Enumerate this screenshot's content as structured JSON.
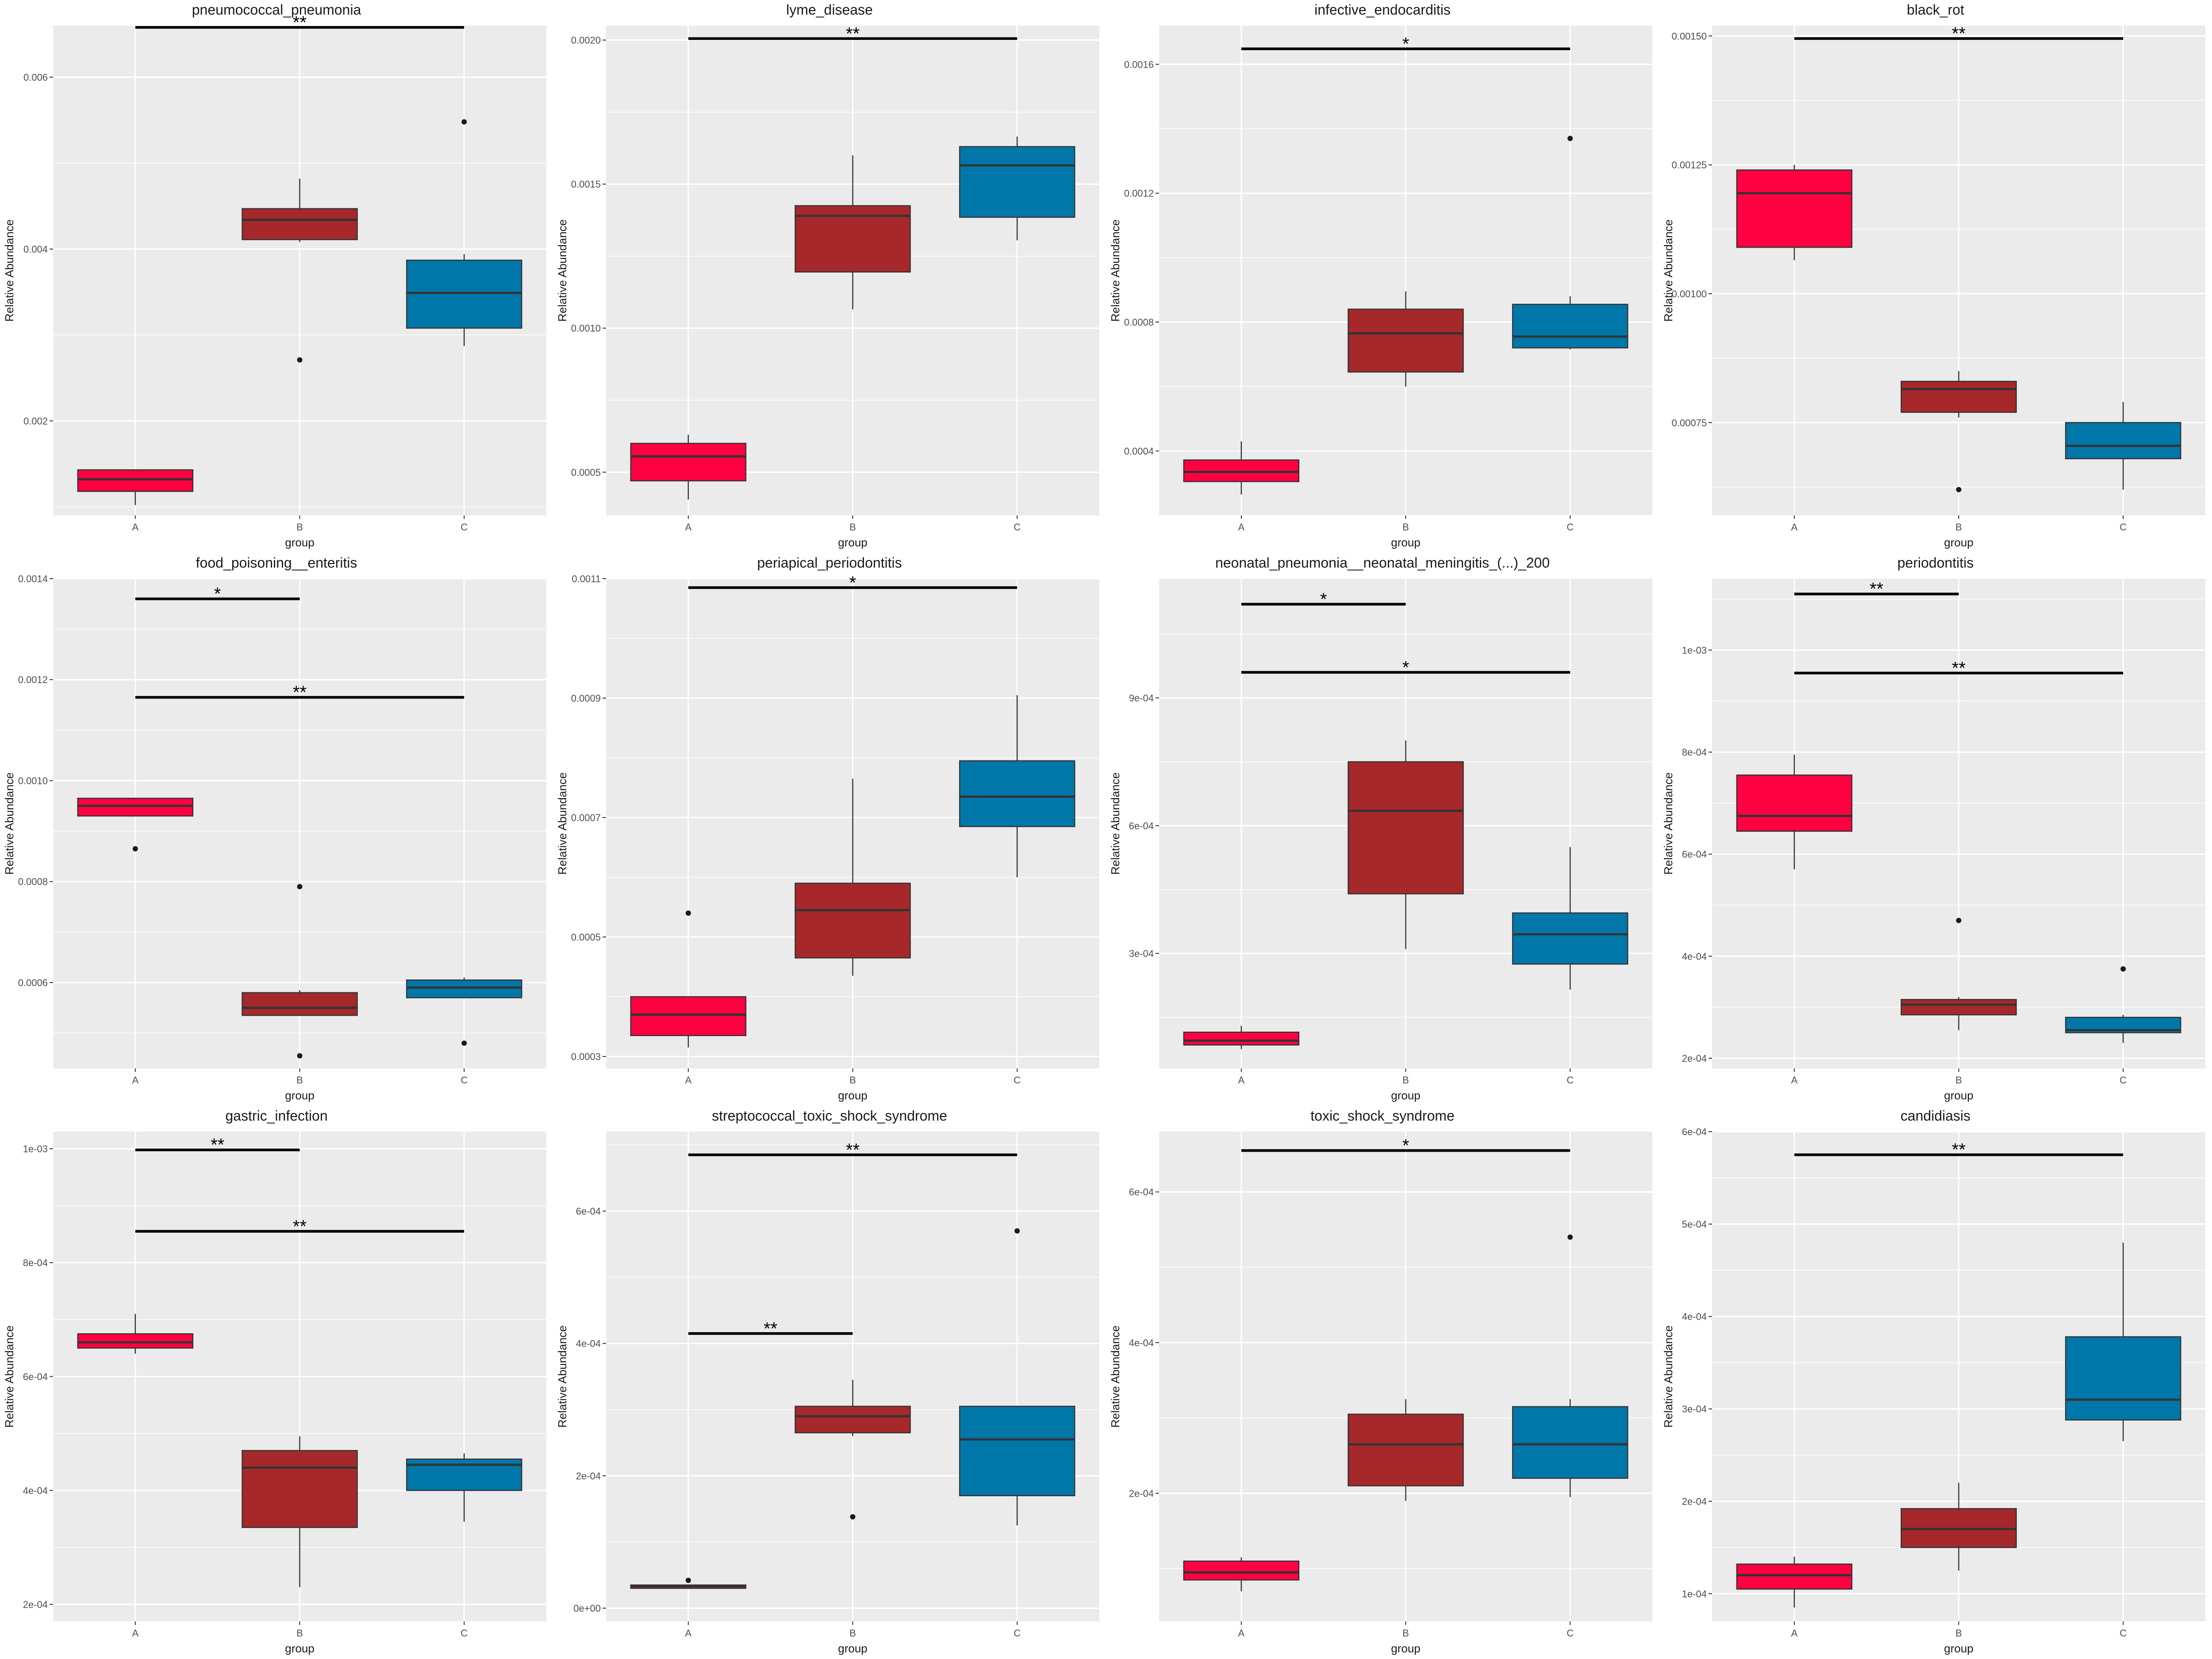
{
  "colors": {
    "A": "#FF0040",
    "B": "#A6282B",
    "C": "#0077A8",
    "panel_bg": "#EBEBEB",
    "grid": "#FFFFFF"
  },
  "chart_data": [
    {
      "type": "box",
      "title": "pneumococcal_pneumonia",
      "xlabel": "group",
      "ylabel": "Relative Abundance",
      "categories": [
        "A",
        "B",
        "C"
      ],
      "yticks": [
        0.002,
        0.004,
        0.006
      ],
      "ytick_labels": [
        "0.002",
        "0.004",
        "0.006"
      ],
      "ylim": [
        0.0009,
        0.0066
      ],
      "boxes": [
        {
          "group": "A",
          "min": 0.00102,
          "q1": 0.00118,
          "median": 0.00132,
          "q3": 0.00143,
          "max": 0.00143,
          "outliers": []
        },
        {
          "group": "B",
          "min": 0.00408,
          "q1": 0.00411,
          "median": 0.00434,
          "q3": 0.00447,
          "max": 0.00482,
          "outliers": [
            0.00271
          ]
        },
        {
          "group": "C",
          "min": 0.00287,
          "q1": 0.00308,
          "median": 0.00349,
          "q3": 0.00387,
          "max": 0.00394,
          "outliers": [
            0.00548
          ]
        }
      ],
      "significance": [
        {
          "from": "A",
          "to": "C",
          "y": 0.00658,
          "label": "**"
        }
      ]
    },
    {
      "type": "box",
      "title": "lyme_disease",
      "xlabel": "group",
      "ylabel": "Relative Abundance",
      "categories": [
        "A",
        "B",
        "C"
      ],
      "yticks": [
        0.0005,
        0.001,
        0.0015,
        0.002
      ],
      "ytick_labels": [
        "0.0005",
        "0.0010",
        "0.0015",
        "0.0020"
      ],
      "ylim": [
        0.00035,
        0.00205
      ],
      "boxes": [
        {
          "group": "A",
          "min": 0.000405,
          "q1": 0.00047,
          "median": 0.000555,
          "q3": 0.0006,
          "max": 0.00063,
          "outliers": []
        },
        {
          "group": "B",
          "min": 0.001065,
          "q1": 0.001195,
          "median": 0.00139,
          "q3": 0.001425,
          "max": 0.0016,
          "outliers": []
        },
        {
          "group": "C",
          "min": 0.001305,
          "q1": 0.001385,
          "median": 0.001565,
          "q3": 0.00163,
          "max": 0.001665,
          "outliers": []
        }
      ],
      "significance": [
        {
          "from": "A",
          "to": "C",
          "y": 0.002005,
          "label": "**"
        }
      ]
    },
    {
      "type": "box",
      "title": "infective_endocarditis",
      "xlabel": "group",
      "ylabel": "Relative Abundance",
      "categories": [
        "A",
        "B",
        "C"
      ],
      "yticks": [
        0.0004,
        0.0008,
        0.0012,
        0.0016
      ],
      "ytick_labels": [
        "0.0004",
        "0.0008",
        "0.0012",
        "0.0016"
      ],
      "ylim": [
        0.0002,
        0.00172
      ],
      "boxes": [
        {
          "group": "A",
          "min": 0.000265,
          "q1": 0.000305,
          "median": 0.000335,
          "q3": 0.000372,
          "max": 0.00043,
          "outliers": []
        },
        {
          "group": "B",
          "min": 0.0006,
          "q1": 0.000645,
          "median": 0.000765,
          "q3": 0.00084,
          "max": 0.000895,
          "outliers": []
        },
        {
          "group": "C",
          "min": 0.000715,
          "q1": 0.00072,
          "median": 0.000755,
          "q3": 0.000855,
          "max": 0.00088,
          "outliers": [
            0.00137
          ]
        }
      ],
      "significance": [
        {
          "from": "A",
          "to": "C",
          "y": 0.001648,
          "label": "*"
        }
      ]
    },
    {
      "type": "box",
      "title": "black_rot",
      "xlabel": "group",
      "ylabel": "Relative Abundance",
      "categories": [
        "A",
        "B",
        "C"
      ],
      "yticks": [
        0.00075,
        0.001,
        0.00125,
        0.0015
      ],
      "ytick_labels": [
        "0.00075",
        "0.00100",
        "0.00125",
        "0.00150"
      ],
      "ylim": [
        0.00057,
        0.00152
      ],
      "boxes": [
        {
          "group": "A",
          "min": 0.001065,
          "q1": 0.00109,
          "median": 0.001195,
          "q3": 0.00124,
          "max": 0.00125,
          "outliers": []
        },
        {
          "group": "B",
          "min": 0.00076,
          "q1": 0.00077,
          "median": 0.000815,
          "q3": 0.00083,
          "max": 0.00085,
          "outliers": [
            0.00062
          ]
        },
        {
          "group": "C",
          "min": 0.00062,
          "q1": 0.00068,
          "median": 0.000705,
          "q3": 0.00075,
          "max": 0.00079,
          "outliers": []
        }
      ],
      "significance": [
        {
          "from": "A",
          "to": "C",
          "y": 0.001495,
          "label": "**"
        }
      ]
    },
    {
      "type": "box",
      "title": "food_poisoning__enteritis",
      "xlabel": "group",
      "ylabel": "Relative Abundance",
      "categories": [
        "A",
        "B",
        "C"
      ],
      "yticks": [
        0.0006,
        0.0008,
        0.001,
        0.0012,
        0.0014
      ],
      "ytick_labels": [
        "0.0006",
        "0.0008",
        "0.0010",
        "0.0012",
        "0.0014"
      ],
      "ylim": [
        0.00043,
        0.0014
      ],
      "boxes": [
        {
          "group": "A",
          "min": 0.00093,
          "q1": 0.00093,
          "median": 0.00095,
          "q3": 0.000965,
          "max": 0.000965,
          "outliers": [
            0.000865
          ]
        },
        {
          "group": "B",
          "min": 0.000535,
          "q1": 0.000535,
          "median": 0.00055,
          "q3": 0.00058,
          "max": 0.000585,
          "outliers": [
            0.00079,
            0.000455
          ]
        },
        {
          "group": "C",
          "min": 0.00057,
          "q1": 0.00057,
          "median": 0.00059,
          "q3": 0.000605,
          "max": 0.00061,
          "outliers": [
            0.00048
          ]
        }
      ],
      "significance": [
        {
          "from": "A",
          "to": "B",
          "y": 0.00136,
          "label": "*"
        },
        {
          "from": "A",
          "to": "C",
          "y": 0.001165,
          "label": "**"
        }
      ]
    },
    {
      "type": "box",
      "title": "periapical_periodontitis",
      "xlabel": "group",
      "ylabel": "Relative Abundance",
      "categories": [
        "A",
        "B",
        "C"
      ],
      "yticks": [
        0.0003,
        0.0005,
        0.0007,
        0.0009,
        0.0011
      ],
      "ytick_labels": [
        "0.0003",
        "0.0005",
        "0.0007",
        "0.0009",
        "0.0011"
      ],
      "ylim": [
        0.00028,
        0.0011
      ],
      "boxes": [
        {
          "group": "A",
          "min": 0.000315,
          "q1": 0.000335,
          "median": 0.00037,
          "q3": 0.0004,
          "max": 0.0004,
          "outliers": [
            0.00054
          ]
        },
        {
          "group": "B",
          "min": 0.000435,
          "q1": 0.000465,
          "median": 0.000545,
          "q3": 0.00059,
          "max": 0.000765,
          "outliers": []
        },
        {
          "group": "C",
          "min": 0.0006,
          "q1": 0.000685,
          "median": 0.000735,
          "q3": 0.000795,
          "max": 0.000905,
          "outliers": []
        }
      ],
      "significance": [
        {
          "from": "A",
          "to": "C",
          "y": 0.001085,
          "label": "*"
        }
      ]
    },
    {
      "type": "box",
      "title": "neonatal_pneumonia__neonatal_meningitis_(...)_200",
      "xlabel": "group",
      "ylabel": "Relative Abundance",
      "categories": [
        "A",
        "B",
        "C"
      ],
      "yticks": [
        0.0003,
        0.0006,
        0.0009
      ],
      "ytick_labels": [
        "3e-04",
        "6e-04",
        "9e-04"
      ],
      "ylim": [
        3e-05,
        0.00118
      ],
      "boxes": [
        {
          "group": "A",
          "min": 7.5e-05,
          "q1": 8.5e-05,
          "median": 9.5e-05,
          "q3": 0.000115,
          "max": 0.00013,
          "outliers": []
        },
        {
          "group": "B",
          "min": 0.00031,
          "q1": 0.00044,
          "median": 0.000635,
          "q3": 0.00075,
          "max": 0.0008,
          "outliers": []
        },
        {
          "group": "C",
          "min": 0.000215,
          "q1": 0.000275,
          "median": 0.000345,
          "q3": 0.000395,
          "max": 0.00055,
          "outliers": []
        }
      ],
      "significance": [
        {
          "from": "A",
          "to": "B",
          "y": 0.00112,
          "label": "*"
        },
        {
          "from": "A",
          "to": "C",
          "y": 0.00096,
          "label": "*"
        }
      ]
    },
    {
      "type": "box",
      "title": "periodontitis",
      "xlabel": "group",
      "ylabel": "Relative Abundance",
      "categories": [
        "A",
        "B",
        "C"
      ],
      "yticks": [
        0.0002,
        0.0004,
        0.0006,
        0.0008,
        0.001
      ],
      "ytick_labels": [
        "2e-04",
        "4e-04",
        "6e-04",
        "8e-04",
        "1e-03"
      ],
      "ylim": [
        0.00018,
        0.00114
      ],
      "boxes": [
        {
          "group": "A",
          "min": 0.00057,
          "q1": 0.000645,
          "median": 0.000675,
          "q3": 0.000755,
          "max": 0.000795,
          "outliers": []
        },
        {
          "group": "B",
          "min": 0.000255,
          "q1": 0.000285,
          "median": 0.000305,
          "q3": 0.000315,
          "max": 0.00032,
          "outliers": [
            0.00047
          ]
        },
        {
          "group": "C",
          "min": 0.00023,
          "q1": 0.00025,
          "median": 0.000255,
          "q3": 0.00028,
          "max": 0.000285,
          "outliers": [
            0.000375
          ]
        }
      ],
      "significance": [
        {
          "from": "A",
          "to": "B",
          "y": 0.00111,
          "label": "**"
        },
        {
          "from": "A",
          "to": "C",
          "y": 0.000955,
          "label": "**"
        }
      ]
    },
    {
      "type": "box",
      "title": "gastric_infection",
      "xlabel": "group",
      "ylabel": "Relative Abundance",
      "categories": [
        "A",
        "B",
        "C"
      ],
      "yticks": [
        0.0002,
        0.0004,
        0.0006,
        0.0008,
        0.001
      ],
      "ytick_labels": [
        "2e-04",
        "4e-04",
        "6e-04",
        "8e-04",
        "1e-03"
      ],
      "ylim": [
        0.00017,
        0.00103
      ],
      "boxes": [
        {
          "group": "A",
          "min": 0.00064,
          "q1": 0.00065,
          "median": 0.00066,
          "q3": 0.000675,
          "max": 0.00071,
          "outliers": []
        },
        {
          "group": "B",
          "min": 0.00023,
          "q1": 0.000335,
          "median": 0.00044,
          "q3": 0.00047,
          "max": 0.000495,
          "outliers": []
        },
        {
          "group": "C",
          "min": 0.000345,
          "q1": 0.0004,
          "median": 0.000445,
          "q3": 0.000455,
          "max": 0.000465,
          "outliers": []
        }
      ],
      "significance": [
        {
          "from": "A",
          "to": "B",
          "y": 0.000998,
          "label": "**"
        },
        {
          "from": "A",
          "to": "C",
          "y": 0.000855,
          "label": "**"
        }
      ]
    },
    {
      "type": "box",
      "title": "streptococcal_toxic_shock_syndrome",
      "xlabel": "group",
      "ylabel": "Relative Abundance",
      "categories": [
        "A",
        "B",
        "C"
      ],
      "yticks": [
        0.0,
        0.0002,
        0.0004,
        0.0006
      ],
      "ytick_labels": [
        "0e+00",
        "2e-04",
        "4e-04",
        "6e-04"
      ],
      "ylim": [
        -2e-05,
        0.00072
      ],
      "boxes": [
        {
          "group": "A",
          "min": 3e-05,
          "q1": 3e-05,
          "median": 3.3e-05,
          "q3": 3.5e-05,
          "max": 3.5e-05,
          "outliers": [
            4.2e-05
          ]
        },
        {
          "group": "B",
          "min": 0.00026,
          "q1": 0.000265,
          "median": 0.00029,
          "q3": 0.000305,
          "max": 0.000345,
          "outliers": [
            0.000138
          ]
        },
        {
          "group": "C",
          "min": 0.000125,
          "q1": 0.00017,
          "median": 0.000255,
          "q3": 0.000305,
          "max": 0.000305,
          "outliers": [
            0.00057
          ]
        }
      ],
      "significance": [
        {
          "from": "A",
          "to": "C",
          "y": 0.000685,
          "label": "**"
        },
        {
          "from": "A",
          "to": "B",
          "y": 0.000415,
          "label": "**"
        }
      ]
    },
    {
      "type": "box",
      "title": "toxic_shock_syndrome",
      "xlabel": "group",
      "ylabel": "Relative Abundance",
      "categories": [
        "A",
        "B",
        "C"
      ],
      "yticks": [
        0.0002,
        0.0004,
        0.0006
      ],
      "ytick_labels": [
        "2e-04",
        "4e-04",
        "6e-04"
      ],
      "ylim": [
        3e-05,
        0.00068
      ],
      "boxes": [
        {
          "group": "A",
          "min": 7e-05,
          "q1": 8.5e-05,
          "median": 9.5e-05,
          "q3": 0.00011,
          "max": 0.000115,
          "outliers": []
        },
        {
          "group": "B",
          "min": 0.00019,
          "q1": 0.00021,
          "median": 0.000265,
          "q3": 0.000305,
          "max": 0.000325,
          "outliers": []
        },
        {
          "group": "C",
          "min": 0.000195,
          "q1": 0.00022,
          "median": 0.000265,
          "q3": 0.000315,
          "max": 0.000325,
          "outliers": [
            0.00054
          ]
        }
      ],
      "significance": [
        {
          "from": "A",
          "to": "C",
          "y": 0.000655,
          "label": "*"
        }
      ]
    },
    {
      "type": "box",
      "title": "candidiasis",
      "xlabel": "group",
      "ylabel": "Relative Abundance",
      "categories": [
        "A",
        "B",
        "C"
      ],
      "yticks": [
        0.0001,
        0.0002,
        0.0003,
        0.0004,
        0.0005,
        0.0006
      ],
      "ytick_labels": [
        "1e-04",
        "2e-04",
        "3e-04",
        "4e-04",
        "5e-04",
        "6e-04"
      ],
      "ylim": [
        7e-05,
        0.0006
      ],
      "boxes": [
        {
          "group": "A",
          "min": 8.5e-05,
          "q1": 0.000105,
          "median": 0.00012,
          "q3": 0.000132,
          "max": 0.00014,
          "outliers": []
        },
        {
          "group": "B",
          "min": 0.000125,
          "q1": 0.00015,
          "median": 0.00017,
          "q3": 0.000192,
          "max": 0.00022,
          "outliers": []
        },
        {
          "group": "C",
          "min": 0.000265,
          "q1": 0.000288,
          "median": 0.00031,
          "q3": 0.000378,
          "max": 0.00048,
          "outliers": []
        }
      ],
      "significance": [
        {
          "from": "A",
          "to": "C",
          "y": 0.000575,
          "label": "**"
        }
      ]
    }
  ]
}
